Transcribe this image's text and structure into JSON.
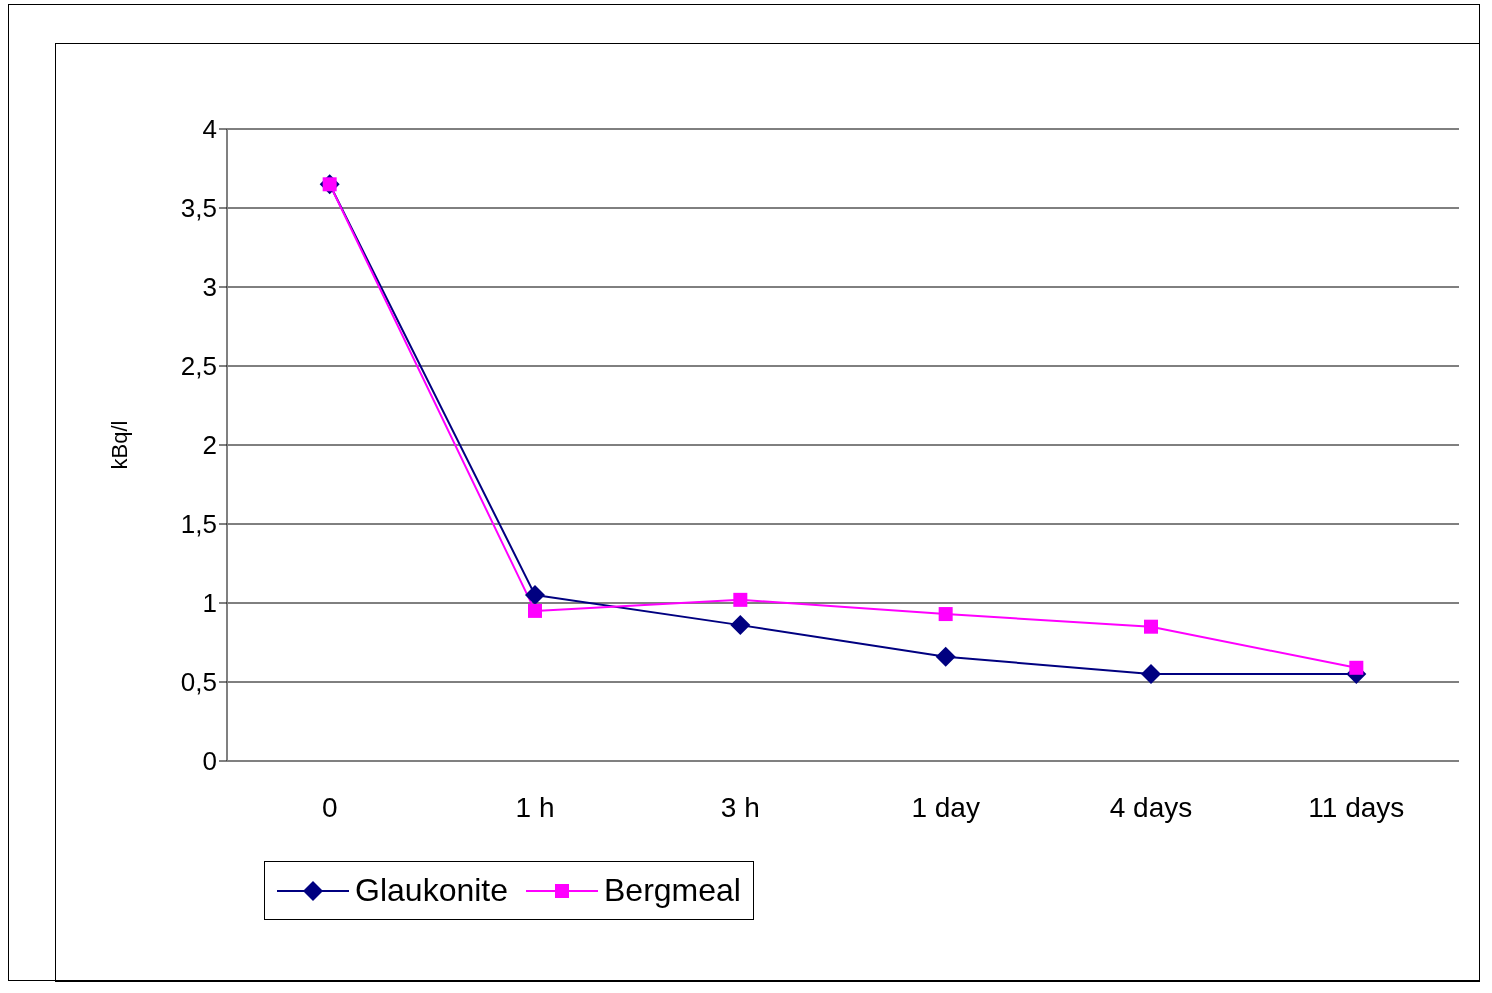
{
  "chart_data": {
    "type": "line",
    "ylabel": "kBq/l",
    "categories": [
      "0",
      "1 h",
      "3 h",
      "1 day",
      "4 days",
      "11 days"
    ],
    "series": [
      {
        "name": "Glaukonite",
        "color": "#000080",
        "marker": "diamond",
        "values": [
          3.65,
          1.05,
          0.86,
          0.66,
          0.55,
          0.55
        ]
      },
      {
        "name": "Bergmeal",
        "color": "#ff00ff",
        "marker": "square",
        "values": [
          3.65,
          0.95,
          1.02,
          0.93,
          0.85,
          0.59
        ]
      }
    ],
    "ylim": [
      0,
      4
    ],
    "yticks": [
      0,
      {
        "value": 0.5,
        "label": "0,5"
      },
      1,
      {
        "value": 1.5,
        "label": "1,5"
      },
      2,
      {
        "value": 2.5,
        "label": "2,5"
      },
      3,
      {
        "value": 3.5,
        "label": "3,5"
      },
      4
    ],
    "grid": "y",
    "legend": "bottom",
    "line_style": "solid"
  }
}
